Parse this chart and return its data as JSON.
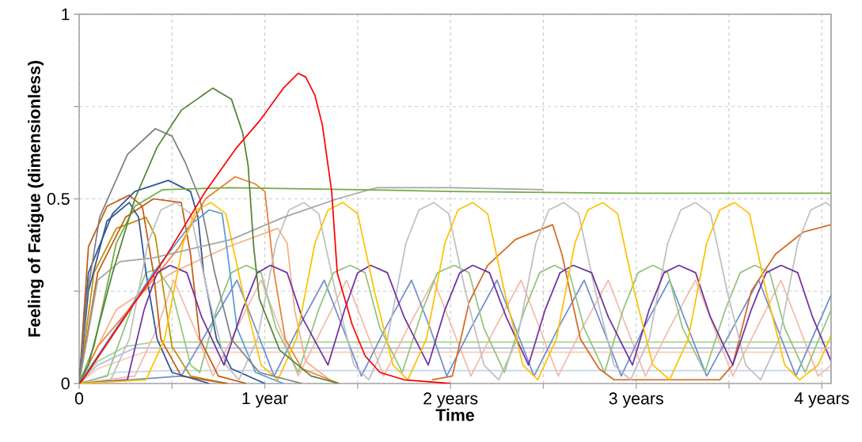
{
  "chart_data": {
    "type": "line",
    "xlabel": "Time",
    "ylabel": "Feeling of Fatigue (dimensionless)",
    "xlim": [
      0,
      4.05
    ],
    "ylim": [
      0,
      1
    ],
    "xticks": [
      0,
      {
        "value": 0.5,
        "label": null
      },
      {
        "value": 1,
        "label": "1 year"
      },
      {
        "value": 1.5,
        "label": null
      },
      {
        "value": 2,
        "label": "2 years"
      },
      {
        "value": 2.5,
        "label": null
      },
      {
        "value": 3,
        "label": "3 years"
      },
      {
        "value": 3.5,
        "label": null
      },
      {
        "value": 4,
        "label": "4 years"
      }
    ],
    "yticks": [
      0,
      {
        "value": 0.25,
        "label": null
      },
      0.5,
      {
        "value": 0.75,
        "label": null
      },
      1
    ],
    "grid": true,
    "legend": false,
    "marker": "none",
    "line_style": "solid",
    "series": [
      {
        "color": "#c5d5ea",
        "x": [
          0,
          0.2,
          0.5,
          4.05
        ],
        "values": [
          0,
          0.03,
          0.035,
          0.035
        ]
      },
      {
        "color": "#f8cbad",
        "x": [
          0,
          0.1,
          0.35,
          4.05
        ],
        "values": [
          0,
          0.04,
          0.085,
          0.085
        ]
      },
      {
        "color": "#b4c0e4",
        "x": [
          0,
          0.1,
          0.3,
          4.05
        ],
        "values": [
          0,
          0.05,
          0.096,
          0.096
        ]
      },
      {
        "color": "#a9d18e",
        "x": [
          0,
          0.1,
          0.25,
          0.4,
          4.05
        ],
        "values": [
          0,
          0.06,
          0.1,
          0.112,
          0.112
        ]
      },
      {
        "color": "#f4b9a8",
        "x": [
          0,
          0.3,
          0.42,
          0.51,
          0.62,
          0.72,
          0.85,
          0.98,
          1.08,
          1.18,
          1.31,
          1.44,
          1.54,
          1.64,
          1.77,
          1.91,
          2.01,
          2.11,
          2.24,
          2.38,
          2.48,
          2.58,
          2.71,
          2.85,
          2.95,
          3.05,
          3.18,
          3.32,
          3.42,
          3.52,
          3.65,
          3.78,
          3.88,
          3.98,
          4.05
        ],
        "values": [
          0,
          0.02,
          0.15,
          0.28,
          0.15,
          0.02,
          0.15,
          0.28,
          0.15,
          0.02,
          0.15,
          0.28,
          0.15,
          0.02,
          0.15,
          0.28,
          0.15,
          0.02,
          0.15,
          0.28,
          0.15,
          0.02,
          0.15,
          0.28,
          0.15,
          0.02,
          0.15,
          0.28,
          0.15,
          0.02,
          0.15,
          0.28,
          0.15,
          0.02,
          0.05
        ]
      },
      {
        "color": "#6f8fcf",
        "x": [
          0,
          0.55,
          0.7,
          0.85,
          0.95,
          1.05,
          1.18,
          1.32,
          1.42,
          1.52,
          1.65,
          1.79,
          1.89,
          1.98,
          2.11,
          2.25,
          2.35,
          2.45,
          2.58,
          2.72,
          2.82,
          2.92,
          3.04,
          3.18,
          3.28,
          3.38,
          3.52,
          3.66,
          3.76,
          3.86,
          4.05
        ],
        "values": [
          0,
          0.02,
          0.15,
          0.28,
          0.15,
          0.02,
          0.15,
          0.28,
          0.15,
          0.02,
          0.15,
          0.28,
          0.15,
          0.02,
          0.15,
          0.28,
          0.15,
          0.02,
          0.15,
          0.28,
          0.15,
          0.02,
          0.15,
          0.28,
          0.15,
          0.02,
          0.15,
          0.28,
          0.15,
          0.02,
          0.24
        ]
      },
      {
        "color": "#93c47d",
        "x": [
          0,
          0.15,
          0.28,
          0.36,
          0.42,
          0.5,
          0.6,
          0.65,
          0.74,
          0.82,
          0.9,
          0.98,
          1.06,
          1.18,
          1.29,
          1.37,
          1.46,
          1.54,
          1.62,
          1.74,
          1.85,
          1.93,
          2.02,
          2.1,
          2.18,
          2.29,
          2.4,
          2.48,
          2.56,
          2.64,
          2.72,
          2.83,
          2.93,
          3.01,
          3.09,
          3.17,
          3.25,
          3.37,
          3.48,
          3.56,
          3.64,
          3.72,
          3.8,
          3.91,
          4.05
        ],
        "values": [
          0,
          0.02,
          0.2,
          0.3,
          0.31,
          0.25,
          0.05,
          0.03,
          0.2,
          0.3,
          0.32,
          0.3,
          0.15,
          0.03,
          0.2,
          0.3,
          0.32,
          0.3,
          0.15,
          0.03,
          0.2,
          0.3,
          0.32,
          0.3,
          0.15,
          0.03,
          0.2,
          0.3,
          0.32,
          0.3,
          0.15,
          0.03,
          0.2,
          0.3,
          0.32,
          0.3,
          0.15,
          0.03,
          0.2,
          0.3,
          0.32,
          0.3,
          0.15,
          0.03,
          0.2
        ]
      },
      {
        "color": "#f4b183",
        "x": [
          0,
          0.2,
          0.5,
          0.8,
          1.07,
          1.12,
          1.16,
          1.22,
          1.35
        ],
        "values": [
          0,
          0.2,
          0.3,
          0.37,
          0.42,
          0.38,
          0.2,
          0.06,
          0.01
        ]
      },
      {
        "color": "#bf9000",
        "x": [
          0,
          0.08,
          0.2,
          0.36,
          0.41,
          0.44,
          0.5,
          0.6,
          0.8
        ],
        "values": [
          0,
          0.3,
          0.42,
          0.45,
          0.4,
          0.3,
          0.1,
          0.02,
          0
        ]
      },
      {
        "color": "#c55a11",
        "x": [
          0,
          0.05,
          0.15,
          0.27,
          0.34,
          0.4,
          0.44,
          0.55,
          0.8
        ],
        "values": [
          0,
          0.37,
          0.48,
          0.51,
          0.48,
          0.3,
          0.12,
          0.02,
          0
        ]
      },
      {
        "color": "#c55a11",
        "x": [
          0,
          0.1,
          0.25,
          0.4,
          0.55,
          0.6,
          0.65,
          0.75,
          0.9
        ],
        "values": [
          0,
          0.3,
          0.45,
          0.5,
          0.49,
          0.35,
          0.12,
          0.02,
          0
        ]
      },
      {
        "color": "#2f5597",
        "x": [
          0,
          0.05,
          0.15,
          0.27,
          0.32,
          0.36,
          0.42,
          0.5,
          0.7
        ],
        "values": [
          0,
          0.25,
          0.44,
          0.49,
          0.45,
          0.3,
          0.12,
          0.03,
          0
        ]
      },
      {
        "color": "#2f5597",
        "x": [
          0,
          0.05,
          0.18,
          0.3,
          0.48,
          0.6,
          0.64,
          0.67,
          0.74,
          0.82,
          1.0
        ],
        "values": [
          0,
          0.3,
          0.46,
          0.52,
          0.55,
          0.52,
          0.45,
          0.3,
          0.12,
          0.04,
          0
        ]
      },
      {
        "color": "#5b9bd5",
        "x": [
          0,
          0.2,
          0.4,
          0.6,
          0.7,
          0.77,
          0.8,
          0.85,
          0.95,
          1.1
        ],
        "values": [
          0,
          0.15,
          0.3,
          0.43,
          0.47,
          0.46,
          0.35,
          0.15,
          0.03,
          0
        ]
      },
      {
        "color": "#ed7d31",
        "x": [
          0,
          0.1,
          0.3,
          0.54,
          0.68,
          0.84,
          0.95,
          1.0,
          1.05,
          1.11,
          1.2,
          1.4
        ],
        "values": [
          0,
          0.1,
          0.22,
          0.37,
          0.5,
          0.56,
          0.54,
          0.52,
          0.3,
          0.12,
          0.04,
          0
        ]
      },
      {
        "color": "#d46a25",
        "x": [
          1.9,
          2.01,
          2.1,
          2.2,
          2.35,
          2.5,
          2.55,
          2.6,
          2.7,
          2.8,
          2.88,
          3.45,
          3.52,
          3.62,
          3.75,
          3.9,
          4.05
        ],
        "values": [
          0.01,
          0.02,
          0.22,
          0.32,
          0.39,
          0.42,
          0.43,
          0.35,
          0.12,
          0.04,
          0.01,
          0.01,
          0.05,
          0.25,
          0.35,
          0.41,
          0.43
        ]
      },
      {
        "color": "#bfbfbf",
        "x": [
          0,
          0.17,
          0.27,
          0.37,
          0.44,
          0.52,
          0.6,
          0.69,
          0.79,
          0.86,
          0.96,
          1.06,
          1.13,
          1.21,
          1.29,
          1.38,
          1.48,
          1.56,
          1.66,
          1.76,
          1.83,
          1.91,
          1.99,
          2.08,
          2.18,
          2.26,
          2.36,
          2.46,
          2.53,
          2.61,
          2.69,
          2.78,
          2.88,
          2.97,
          3.07,
          3.17,
          3.24,
          3.32,
          3.4,
          3.49,
          3.59,
          3.67,
          3.77,
          3.87,
          3.94,
          4.02,
          4.05
        ],
        "values": [
          0,
          0.01,
          0.12,
          0.38,
          0.47,
          0.49,
          0.46,
          0.25,
          0.05,
          0.01,
          0.12,
          0.38,
          0.47,
          0.49,
          0.46,
          0.25,
          0.05,
          0.01,
          0.12,
          0.38,
          0.47,
          0.49,
          0.46,
          0.25,
          0.05,
          0.01,
          0.12,
          0.38,
          0.47,
          0.49,
          0.46,
          0.25,
          0.05,
          0.01,
          0.12,
          0.38,
          0.47,
          0.49,
          0.46,
          0.25,
          0.05,
          0.01,
          0.12,
          0.38,
          0.47,
          0.49,
          0.48
        ]
      },
      {
        "color": "#7030a0",
        "x": [
          0,
          0.26,
          0.35,
          0.42,
          0.49,
          0.58,
          0.66,
          0.78,
          0.88,
          0.96,
          1.03,
          1.12,
          1.2,
          1.34,
          1.43,
          1.5,
          1.57,
          1.66,
          1.75,
          1.88,
          1.97,
          2.05,
          2.12,
          2.21,
          2.3,
          2.42,
          2.51,
          2.59,
          2.66,
          2.76,
          2.85,
          2.98,
          3.07,
          3.15,
          3.23,
          3.32,
          3.4,
          3.52,
          3.62,
          3.7,
          3.78,
          3.87,
          3.95,
          4.05
        ],
        "values": [
          0,
          0.01,
          0.2,
          0.3,
          0.32,
          0.3,
          0.18,
          0.05,
          0.2,
          0.3,
          0.32,
          0.3,
          0.18,
          0.05,
          0.2,
          0.3,
          0.32,
          0.3,
          0.18,
          0.05,
          0.2,
          0.3,
          0.32,
          0.3,
          0.18,
          0.05,
          0.2,
          0.3,
          0.32,
          0.3,
          0.18,
          0.05,
          0.2,
          0.3,
          0.32,
          0.3,
          0.18,
          0.05,
          0.2,
          0.3,
          0.32,
          0.3,
          0.18,
          0.06
        ]
      },
      {
        "color": "#ffc000",
        "x": [
          0,
          0.36,
          0.46,
          0.56,
          0.63,
          0.71,
          0.79,
          0.88,
          0.98,
          1.07,
          1.17,
          1.27,
          1.34,
          1.42,
          1.5,
          1.59,
          1.69,
          1.77,
          1.87,
          1.97,
          2.04,
          2.12,
          2.2,
          2.29,
          2.39,
          2.47,
          2.57,
          2.67,
          2.74,
          2.82,
          2.9,
          2.99,
          3.09,
          3.18,
          3.28,
          3.38,
          3.45,
          3.53,
          3.61,
          3.7,
          3.8,
          3.88,
          3.98,
          4.05
        ],
        "values": [
          0,
          0.01,
          0.12,
          0.38,
          0.47,
          0.49,
          0.46,
          0.25,
          0.05,
          0.01,
          0.12,
          0.38,
          0.47,
          0.49,
          0.46,
          0.25,
          0.05,
          0.01,
          0.12,
          0.38,
          0.47,
          0.49,
          0.46,
          0.25,
          0.05,
          0.01,
          0.12,
          0.38,
          0.47,
          0.49,
          0.46,
          0.25,
          0.05,
          0.01,
          0.12,
          0.38,
          0.47,
          0.49,
          0.46,
          0.25,
          0.05,
          0.01,
          0.05,
          0.13
        ]
      },
      {
        "color": "#a5a5a5",
        "x": [
          0,
          0.1,
          0.22,
          0.4,
          0.82,
          1.1,
          1.39,
          1.6,
          2.0,
          2.5
        ],
        "values": [
          0,
          0.28,
          0.33,
          0.34,
          0.39,
          0.45,
          0.5,
          0.53,
          0.53,
          0.525
        ]
      },
      {
        "color": "#7f7f7f",
        "x": [
          0,
          0.04,
          0.11,
          0.26,
          0.41,
          0.5,
          0.57,
          0.65,
          0.73,
          0.82,
          0.97,
          1.2
        ],
        "values": [
          0,
          0.23,
          0.45,
          0.62,
          0.69,
          0.67,
          0.6,
          0.5,
          0.3,
          0.12,
          0.03,
          0
        ]
      },
      {
        "color": "#70ad47",
        "x": [
          0,
          0.08,
          0.2,
          0.3,
          0.45,
          0.8,
          1.5,
          2.0,
          3.0,
          4.05
        ],
        "values": [
          0,
          0.1,
          0.38,
          0.48,
          0.525,
          0.53,
          0.525,
          0.52,
          0.515,
          0.515
        ]
      },
      {
        "color": "#548235",
        "x": [
          0,
          0.05,
          0.18,
          0.3,
          0.42,
          0.55,
          0.72,
          0.82,
          0.88,
          0.91,
          0.94,
          0.97,
          1.08,
          1.25,
          1.4
        ],
        "values": [
          0,
          0.05,
          0.3,
          0.5,
          0.64,
          0.74,
          0.8,
          0.77,
          0.68,
          0.59,
          0.37,
          0.23,
          0.09,
          0.02,
          0
        ]
      },
      {
        "color": "#ff0000",
        "x": [
          0,
          0.02,
          0.1,
          0.26,
          0.45,
          0.68,
          0.85,
          0.97,
          1.1,
          1.18,
          1.22,
          1.27,
          1.31,
          1.36,
          1.39,
          1.47,
          1.54,
          1.62,
          1.75,
          2.0
        ],
        "values": [
          0,
          0.01,
          0.07,
          0.19,
          0.33,
          0.52,
          0.64,
          0.71,
          0.8,
          0.84,
          0.83,
          0.78,
          0.7,
          0.52,
          0.3,
          0.16,
          0.075,
          0.03,
          0.01,
          0
        ]
      }
    ]
  }
}
